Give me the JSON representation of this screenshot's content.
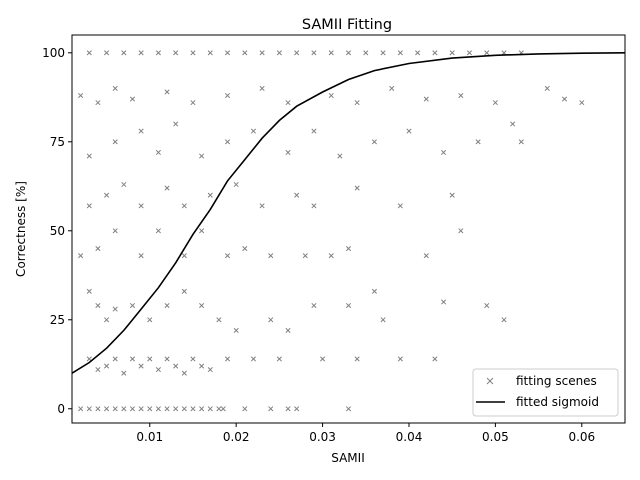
{
  "chart_data": {
    "type": "scatter",
    "title": "SAMII Fitting",
    "xlabel": "SAMII",
    "ylabel": "Correctness [%]",
    "xlim": [
      0.001,
      0.065
    ],
    "ylim": [
      -4,
      105
    ],
    "xticks": [
      0.01,
      0.02,
      0.03,
      0.04,
      0.05,
      0.06
    ],
    "xtick_labels": [
      "0.01",
      "0.02",
      "0.03",
      "0.04",
      "0.05",
      "0.06"
    ],
    "yticks": [
      0,
      25,
      50,
      75,
      100
    ],
    "ytick_labels": [
      "0",
      "25",
      "50",
      "75",
      "100"
    ],
    "legend_position": "bottom-right",
    "grid": false,
    "series": [
      {
        "name": "fitting scenes",
        "kind": "scatter",
        "marker": "x",
        "color": "#808080",
        "points": [
          [
            0.002,
            0
          ],
          [
            0.003,
            0
          ],
          [
            0.004,
            0
          ],
          [
            0.005,
            0
          ],
          [
            0.006,
            0
          ],
          [
            0.007,
            0
          ],
          [
            0.008,
            0
          ],
          [
            0.009,
            0
          ],
          [
            0.01,
            0
          ],
          [
            0.011,
            0
          ],
          [
            0.012,
            0
          ],
          [
            0.013,
            0
          ],
          [
            0.014,
            0
          ],
          [
            0.015,
            0
          ],
          [
            0.016,
            0
          ],
          [
            0.017,
            0
          ],
          [
            0.018,
            0
          ],
          [
            0.0185,
            0
          ],
          [
            0.021,
            0
          ],
          [
            0.024,
            0
          ],
          [
            0.026,
            0
          ],
          [
            0.027,
            0
          ],
          [
            0.033,
            0
          ],
          [
            0.003,
            100
          ],
          [
            0.005,
            100
          ],
          [
            0.007,
            100
          ],
          [
            0.009,
            100
          ],
          [
            0.011,
            100
          ],
          [
            0.013,
            100
          ],
          [
            0.015,
            100
          ],
          [
            0.017,
            100
          ],
          [
            0.019,
            100
          ],
          [
            0.021,
            100
          ],
          [
            0.023,
            100
          ],
          [
            0.025,
            100
          ],
          [
            0.027,
            100
          ],
          [
            0.029,
            100
          ],
          [
            0.031,
            100
          ],
          [
            0.033,
            100
          ],
          [
            0.035,
            100
          ],
          [
            0.037,
            100
          ],
          [
            0.039,
            100
          ],
          [
            0.041,
            100
          ],
          [
            0.043,
            100
          ],
          [
            0.045,
            100
          ],
          [
            0.047,
            100
          ],
          [
            0.049,
            100
          ],
          [
            0.051,
            100
          ],
          [
            0.053,
            100
          ],
          [
            0.002,
            88
          ],
          [
            0.004,
            86
          ],
          [
            0.006,
            90
          ],
          [
            0.008,
            87
          ],
          [
            0.012,
            89
          ],
          [
            0.015,
            86
          ],
          [
            0.019,
            88
          ],
          [
            0.023,
            90
          ],
          [
            0.026,
            86
          ],
          [
            0.031,
            88
          ],
          [
            0.034,
            86
          ],
          [
            0.038,
            90
          ],
          [
            0.042,
            87
          ],
          [
            0.046,
            88
          ],
          [
            0.05,
            86
          ],
          [
            0.056,
            90
          ],
          [
            0.058,
            87
          ],
          [
            0.06,
            86
          ],
          [
            0.003,
            71
          ],
          [
            0.006,
            75
          ],
          [
            0.009,
            78
          ],
          [
            0.011,
            72
          ],
          [
            0.013,
            80
          ],
          [
            0.016,
            71
          ],
          [
            0.019,
            75
          ],
          [
            0.022,
            78
          ],
          [
            0.026,
            72
          ],
          [
            0.029,
            78
          ],
          [
            0.032,
            71
          ],
          [
            0.036,
            75
          ],
          [
            0.04,
            78
          ],
          [
            0.044,
            72
          ],
          [
            0.048,
            75
          ],
          [
            0.052,
            80
          ],
          [
            0.053,
            75
          ],
          [
            0.003,
            57
          ],
          [
            0.005,
            60
          ],
          [
            0.007,
            63
          ],
          [
            0.009,
            57
          ],
          [
            0.012,
            62
          ],
          [
            0.014,
            57
          ],
          [
            0.017,
            60
          ],
          [
            0.02,
            63
          ],
          [
            0.023,
            57
          ],
          [
            0.027,
            60
          ],
          [
            0.029,
            57
          ],
          [
            0.034,
            62
          ],
          [
            0.039,
            57
          ],
          [
            0.045,
            60
          ],
          [
            0.046,
            50
          ],
          [
            0.002,
            43
          ],
          [
            0.004,
            45
          ],
          [
            0.006,
            50
          ],
          [
            0.009,
            43
          ],
          [
            0.011,
            50
          ],
          [
            0.014,
            43
          ],
          [
            0.016,
            50
          ],
          [
            0.019,
            43
          ],
          [
            0.021,
            45
          ],
          [
            0.024,
            43
          ],
          [
            0.028,
            43
          ],
          [
            0.031,
            43
          ],
          [
            0.033,
            45
          ],
          [
            0.036,
            33
          ],
          [
            0.042,
            43
          ],
          [
            0.003,
            33
          ],
          [
            0.004,
            29
          ],
          [
            0.005,
            25
          ],
          [
            0.006,
            28
          ],
          [
            0.008,
            29
          ],
          [
            0.01,
            25
          ],
          [
            0.012,
            29
          ],
          [
            0.014,
            33
          ],
          [
            0.016,
            29
          ],
          [
            0.018,
            25
          ],
          [
            0.02,
            22
          ],
          [
            0.024,
            25
          ],
          [
            0.026,
            22
          ],
          [
            0.029,
            29
          ],
          [
            0.033,
            29
          ],
          [
            0.037,
            25
          ],
          [
            0.044,
            30
          ],
          [
            0.049,
            29
          ],
          [
            0.051,
            25
          ],
          [
            0.003,
            14
          ],
          [
            0.004,
            11
          ],
          [
            0.005,
            12
          ],
          [
            0.006,
            14
          ],
          [
            0.007,
            10
          ],
          [
            0.008,
            14
          ],
          [
            0.009,
            12
          ],
          [
            0.01,
            14
          ],
          [
            0.011,
            11
          ],
          [
            0.012,
            14
          ],
          [
            0.013,
            12
          ],
          [
            0.014,
            10
          ],
          [
            0.015,
            14
          ],
          [
            0.016,
            12
          ],
          [
            0.017,
            11
          ],
          [
            0.019,
            14
          ],
          [
            0.022,
            14
          ],
          [
            0.025,
            14
          ],
          [
            0.03,
            14
          ],
          [
            0.034,
            14
          ],
          [
            0.039,
            14
          ],
          [
            0.043,
            14
          ]
        ]
      },
      {
        "name": "fitted sigmoid",
        "kind": "line",
        "color": "#000000",
        "points": [
          [
            0.001,
            10
          ],
          [
            0.003,
            13
          ],
          [
            0.005,
            17
          ],
          [
            0.007,
            22
          ],
          [
            0.009,
            28
          ],
          [
            0.011,
            34
          ],
          [
            0.013,
            41
          ],
          [
            0.015,
            49
          ],
          [
            0.017,
            56
          ],
          [
            0.019,
            64
          ],
          [
            0.021,
            70
          ],
          [
            0.023,
            76
          ],
          [
            0.025,
            81
          ],
          [
            0.027,
            85
          ],
          [
            0.03,
            89
          ],
          [
            0.033,
            92.5
          ],
          [
            0.036,
            95
          ],
          [
            0.04,
            97
          ],
          [
            0.045,
            98.5
          ],
          [
            0.05,
            99.3
          ],
          [
            0.055,
            99.7
          ],
          [
            0.06,
            99.9
          ],
          [
            0.065,
            100
          ]
        ]
      }
    ]
  }
}
